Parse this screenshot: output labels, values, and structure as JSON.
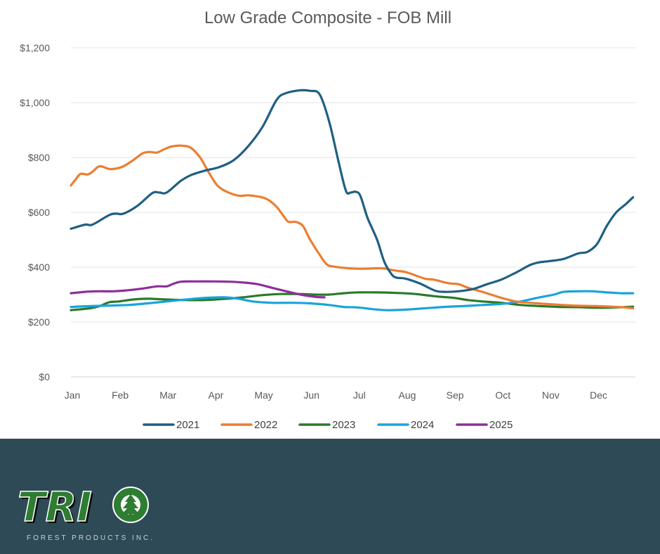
{
  "chart_data": {
    "type": "line",
    "title": "Low Grade Composite   - FOB Mill",
    "xlabel": "",
    "ylabel": "",
    "x_ticks": [
      "Jan",
      "Feb",
      "Mar",
      "Apr",
      "May",
      "Jun",
      "Jul",
      "Aug",
      "Sep",
      "Oct",
      "Nov",
      "Dec"
    ],
    "y_ticks": [
      "$0",
      "$200",
      "$400",
      "$600",
      "$800",
      "$1,000",
      "$1,200"
    ],
    "ylim": [
      0,
      1200
    ],
    "xlim": [
      0,
      11.8
    ],
    "grid": "horizontal",
    "legend_position": "bottom",
    "series": [
      {
        "name": "2021",
        "color": "#1f5f82",
        "points": [
          [
            0,
            540
          ],
          [
            0.3,
            555
          ],
          [
            0.45,
            555
          ],
          [
            0.8,
            590
          ],
          [
            0.95,
            595
          ],
          [
            1.1,
            595
          ],
          [
            1.4,
            625
          ],
          [
            1.7,
            670
          ],
          [
            1.85,
            672
          ],
          [
            2.0,
            672
          ],
          [
            2.3,
            715
          ],
          [
            2.5,
            735
          ],
          [
            2.8,
            752
          ],
          [
            3.1,
            765
          ],
          [
            3.4,
            790
          ],
          [
            3.7,
            840
          ],
          [
            4.0,
            910
          ],
          [
            4.3,
            1010
          ],
          [
            4.5,
            1035
          ],
          [
            4.8,
            1045
          ],
          [
            5.0,
            1043
          ],
          [
            5.2,
            1030
          ],
          [
            5.4,
            930
          ],
          [
            5.6,
            780
          ],
          [
            5.75,
            678
          ],
          [
            5.85,
            672
          ],
          [
            5.95,
            675
          ],
          [
            6.05,
            660
          ],
          [
            6.2,
            580
          ],
          [
            6.4,
            500
          ],
          [
            6.55,
            420
          ],
          [
            6.7,
            375
          ],
          [
            6.8,
            362
          ],
          [
            7.0,
            358
          ],
          [
            7.3,
            340
          ],
          [
            7.6,
            315
          ],
          [
            7.8,
            310
          ],
          [
            8.1,
            312
          ],
          [
            8.4,
            320
          ],
          [
            8.7,
            338
          ],
          [
            9.0,
            355
          ],
          [
            9.3,
            380
          ],
          [
            9.6,
            408
          ],
          [
            9.8,
            418
          ],
          [
            10.0,
            422
          ],
          [
            10.3,
            430
          ],
          [
            10.6,
            450
          ],
          [
            10.8,
            456
          ],
          [
            11.0,
            485
          ],
          [
            11.2,
            550
          ],
          [
            11.4,
            600
          ],
          [
            11.6,
            630
          ],
          [
            11.75,
            655
          ]
        ]
      },
      {
        "name": "2022",
        "color": "#ed7d31",
        "points": [
          [
            0,
            698
          ],
          [
            0.1,
            720
          ],
          [
            0.2,
            740
          ],
          [
            0.35,
            738
          ],
          [
            0.45,
            748
          ],
          [
            0.6,
            768
          ],
          [
            0.8,
            758
          ],
          [
            0.95,
            760
          ],
          [
            1.1,
            768
          ],
          [
            1.3,
            790
          ],
          [
            1.5,
            815
          ],
          [
            1.65,
            820
          ],
          [
            1.8,
            818
          ],
          [
            1.95,
            830
          ],
          [
            2.1,
            840
          ],
          [
            2.3,
            843
          ],
          [
            2.5,
            836
          ],
          [
            2.7,
            800
          ],
          [
            2.9,
            740
          ],
          [
            3.05,
            700
          ],
          [
            3.2,
            680
          ],
          [
            3.4,
            665
          ],
          [
            3.55,
            660
          ],
          [
            3.7,
            662
          ],
          [
            3.9,
            658
          ],
          [
            4.1,
            648
          ],
          [
            4.3,
            620
          ],
          [
            4.45,
            585
          ],
          [
            4.55,
            565
          ],
          [
            4.7,
            565
          ],
          [
            4.85,
            550
          ],
          [
            5.0,
            500
          ],
          [
            5.2,
            445
          ],
          [
            5.35,
            410
          ],
          [
            5.5,
            402
          ],
          [
            5.8,
            396
          ],
          [
            6.1,
            394
          ],
          [
            6.4,
            396
          ],
          [
            6.55,
            395
          ],
          [
            6.7,
            390
          ],
          [
            6.85,
            386
          ],
          [
            7.0,
            382
          ],
          [
            7.2,
            370
          ],
          [
            7.4,
            358
          ],
          [
            7.6,
            354
          ],
          [
            7.8,
            345
          ],
          [
            7.95,
            340
          ],
          [
            8.1,
            338
          ],
          [
            8.3,
            325
          ],
          [
            8.6,
            310
          ],
          [
            9.0,
            288
          ],
          [
            9.3,
            275
          ],
          [
            9.6,
            270
          ],
          [
            10.0,
            265
          ],
          [
            10.5,
            260
          ],
          [
            11.0,
            258
          ],
          [
            11.5,
            254
          ],
          [
            11.75,
            250
          ]
        ]
      },
      {
        "name": "2023",
        "color": "#2a7a2a",
        "points": [
          [
            0,
            243
          ],
          [
            0.4,
            250
          ],
          [
            0.6,
            258
          ],
          [
            0.8,
            272
          ],
          [
            1.0,
            275
          ],
          [
            1.3,
            282
          ],
          [
            1.6,
            285
          ],
          [
            2.0,
            282
          ],
          [
            2.4,
            280
          ],
          [
            2.8,
            280
          ],
          [
            3.2,
            284
          ],
          [
            3.6,
            290
          ],
          [
            4.0,
            298
          ],
          [
            4.4,
            302
          ],
          [
            4.8,
            302
          ],
          [
            5.1,
            300
          ],
          [
            5.4,
            300
          ],
          [
            5.7,
            305
          ],
          [
            6.0,
            308
          ],
          [
            6.4,
            308
          ],
          [
            6.8,
            306
          ],
          [
            7.2,
            302
          ],
          [
            7.6,
            294
          ],
          [
            8.0,
            288
          ],
          [
            8.3,
            280
          ],
          [
            8.6,
            275
          ],
          [
            9.0,
            270
          ],
          [
            9.4,
            262
          ],
          [
            9.8,
            258
          ],
          [
            10.2,
            255
          ],
          [
            10.6,
            254
          ],
          [
            11.0,
            252
          ],
          [
            11.4,
            253
          ],
          [
            11.75,
            256
          ]
        ]
      },
      {
        "name": "2024",
        "color": "#19a4dc",
        "points": [
          [
            0,
            255
          ],
          [
            0.4,
            258
          ],
          [
            0.8,
            260
          ],
          [
            1.2,
            262
          ],
          [
            1.6,
            268
          ],
          [
            2.0,
            275
          ],
          [
            2.4,
            282
          ],
          [
            2.8,
            288
          ],
          [
            3.2,
            290
          ],
          [
            3.5,
            285
          ],
          [
            3.8,
            275
          ],
          [
            4.2,
            270
          ],
          [
            4.6,
            270
          ],
          [
            5.0,
            268
          ],
          [
            5.4,
            262
          ],
          [
            5.7,
            255
          ],
          [
            6.0,
            253
          ],
          [
            6.3,
            247
          ],
          [
            6.6,
            243
          ],
          [
            7.0,
            245
          ],
          [
            7.4,
            250
          ],
          [
            7.8,
            255
          ],
          [
            8.2,
            258
          ],
          [
            8.6,
            262
          ],
          [
            9.0,
            266
          ],
          [
            9.4,
            275
          ],
          [
            9.8,
            290
          ],
          [
            10.1,
            300
          ],
          [
            10.3,
            310
          ],
          [
            10.6,
            312
          ],
          [
            10.9,
            312
          ],
          [
            11.2,
            308
          ],
          [
            11.5,
            305
          ],
          [
            11.75,
            305
          ]
        ]
      },
      {
        "name": "2025",
        "color": "#8e2f9b",
        "points": [
          [
            0,
            305
          ],
          [
            0.3,
            310
          ],
          [
            0.6,
            312
          ],
          [
            0.9,
            312
          ],
          [
            1.2,
            316
          ],
          [
            1.5,
            322
          ],
          [
            1.8,
            330
          ],
          [
            2.0,
            330
          ],
          [
            2.15,
            340
          ],
          [
            2.3,
            347
          ],
          [
            2.6,
            348
          ],
          [
            3.0,
            348
          ],
          [
            3.3,
            347
          ],
          [
            3.6,
            344
          ],
          [
            3.9,
            338
          ],
          [
            4.2,
            325
          ],
          [
            4.5,
            312
          ],
          [
            4.8,
            300
          ],
          [
            5.1,
            292
          ],
          [
            5.3,
            290
          ]
        ]
      }
    ]
  }
}
